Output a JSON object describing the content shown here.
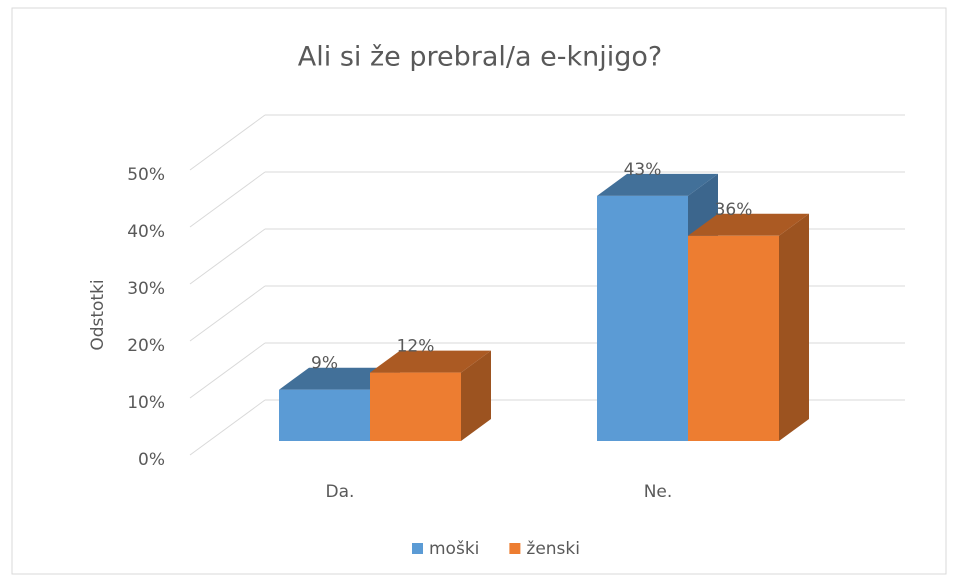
{
  "chart_data": {
    "type": "bar3d",
    "title": "Ali si že prebral/a e-knjigo?",
    "y_label": "Odstotki",
    "categories": [
      "Da.",
      "Ne."
    ],
    "series": [
      {
        "name": "moški",
        "color": "#5b9bd5",
        "values": [
          9,
          43
        ],
        "value_labels": [
          "9%",
          "43%"
        ]
      },
      {
        "name": "ženski",
        "color": "#ed7d31",
        "values": [
          12,
          36
        ],
        "value_labels": [
          "12%",
          "36%"
        ]
      }
    ],
    "ylim": [
      0,
      50
    ],
    "yticks": [
      {
        "value": 0,
        "label": "0%"
      },
      {
        "value": 10,
        "label": "10%"
      },
      {
        "value": 20,
        "label": "20%"
      },
      {
        "value": 30,
        "label": "30%"
      },
      {
        "value": 40,
        "label": "40%"
      },
      {
        "value": 50,
        "label": "50%"
      }
    ],
    "grid": true,
    "legend": "bottom"
  }
}
